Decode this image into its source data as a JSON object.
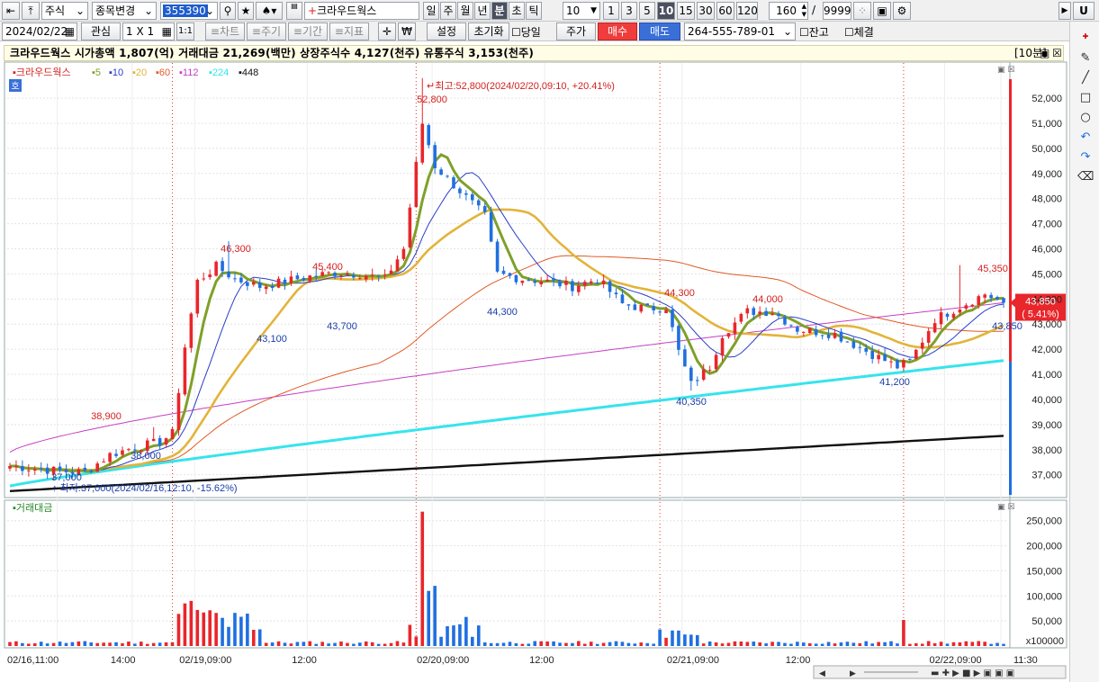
{
  "toolbar1": {
    "market": "주식",
    "change_btn": "종목변경",
    "code": "355390",
    "stock_name": "크라우드웍스",
    "periods": [
      "일",
      "주",
      "월",
      "년",
      "분",
      "초",
      "틱"
    ],
    "period_selected": "분",
    "interval_value": "10",
    "quick_intervals": [
      "1",
      "3",
      "5",
      "10",
      "15",
      "30",
      "60",
      "120"
    ],
    "quick_selected": "10",
    "count": "160",
    "count_sep": "/",
    "count_max": "9999",
    "right_u": "U"
  },
  "toolbar2": {
    "date": "2024/02/22",
    "watch": "관심",
    "layout": "1 X 1",
    "one": "1:1",
    "tabs": [
      "≡차트",
      "≡주기",
      "≡기간",
      "≡지표"
    ],
    "won": "₩",
    "settings": "설정",
    "reset": "초기화",
    "today_label": "당일",
    "price_btn": "주가",
    "buy": "매수",
    "sell": "매도",
    "account": "264-555-789-01",
    "balance_label": "잔고",
    "fill_label": "체결"
  },
  "info": {
    "text": "크라우드웍스  시가총액 1,807(억) 거래대금 21,269(백만) 상장주식수 4,127(천주) 유통주식 3,153(천주)",
    "period_tag": "[10분]"
  },
  "colors": {
    "up": "#e8262b",
    "down": "#1f6fe0",
    "ma5": "#7fa02a",
    "ma10": "#2a3fc8",
    "ma20": "#e2b43a",
    "ma60": "#e05a28",
    "ma112": "#c640c6",
    "ma224": "#36e4ec",
    "ma448": "#111111"
  },
  "legend": {
    "name": "크라우드웍스",
    "mas": [
      "5",
      "10",
      "20",
      "60",
      "112",
      "224",
      "448"
    ],
    "ho": "호"
  },
  "chart_data": {
    "type": "candlestick",
    "yticks": [
      "52,000",
      "51,000",
      "50,000",
      "49,000",
      "48,000",
      "47,000",
      "46,000",
      "45,000",
      "44,000",
      "43,000",
      "42,000",
      "41,000",
      "40,000",
      "39,000",
      "38,000",
      "37,000"
    ],
    "ylim": [
      36200,
      53400
    ],
    "xlabels": [
      "02/16,11:00",
      "14:00",
      "02/19,09:00",
      "12:00",
      "02/20,09:00",
      "12:00",
      "02/21,09:00",
      "12:00",
      "02/22,09:00",
      "11:30"
    ],
    "high_label": "최고:52,800(2024/02/20,09:10, +20.41%)",
    "low_label": "최저:37,000(2024/02/16,12:10, -15.62%)",
    "annotations": [
      {
        "text": "52,800",
        "dir": "up"
      },
      {
        "text": "46,300",
        "dir": "up"
      },
      {
        "text": "45,400",
        "dir": "up"
      },
      {
        "text": "44,300",
        "dir": "up"
      },
      {
        "text": "44,000",
        "dir": "up"
      },
      {
        "text": "45,350",
        "dir": "up"
      },
      {
        "text": "38,900",
        "dir": "up"
      },
      {
        "text": "43,100",
        "dir": "down"
      },
      {
        "text": "43,700",
        "dir": "down"
      },
      {
        "text": "44,300",
        "dir": "down"
      },
      {
        "text": "40,350",
        "dir": "down"
      },
      {
        "text": "41,200",
        "dir": "down"
      },
      {
        "text": "38,000",
        "dir": "down"
      },
      {
        "text": "37,000",
        "dir": "down"
      },
      {
        "text": "43,850",
        "dir": "down"
      }
    ],
    "current_price": "43,850",
    "current_change": "( 5.41%)",
    "ma_endpoints": {
      "ma60": 42750,
      "ma112": 43850,
      "ma224": 41550,
      "ma448": 38550
    },
    "volume": {
      "title": "거래대금",
      "yticks": [
        "250,000",
        "200,000",
        "150,000",
        "100,000",
        "50,000"
      ],
      "unit": "x100000",
      "ymax": 280000
    }
  }
}
